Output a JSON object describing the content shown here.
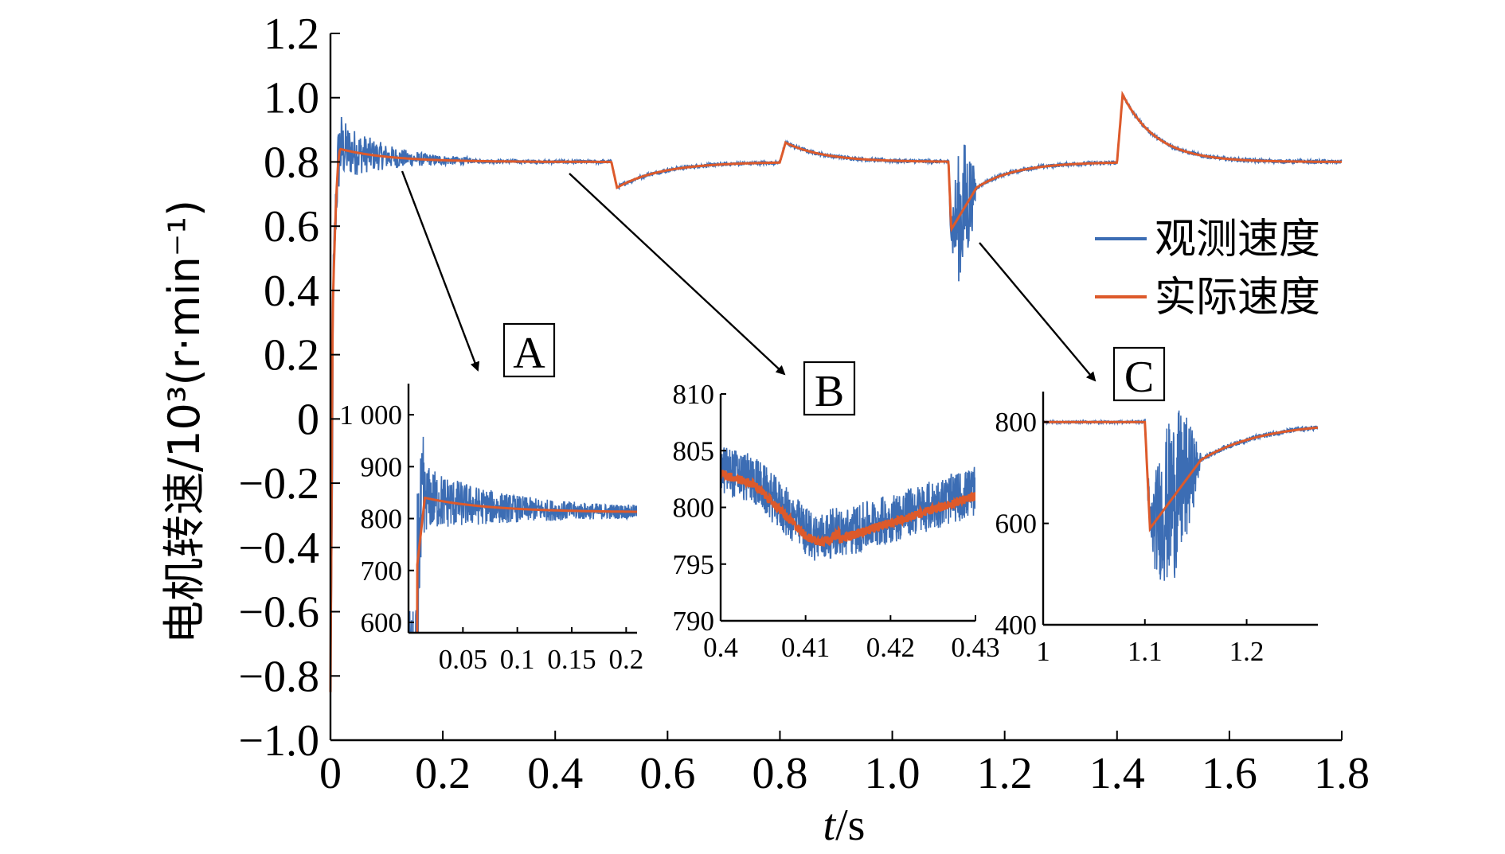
{
  "chart_data": [
    {
      "id": "main",
      "type": "line",
      "title": "",
      "xlabel_italic": "t",
      "xlabel_rest": "/s",
      "ylabel": "电机转速/10³(r·min⁻¹)",
      "xlim": [
        0,
        1.8
      ],
      "ylim": [
        -1.0,
        1.2
      ],
      "xticks": [
        0,
        0.2,
        0.4,
        0.6,
        0.8,
        1.0,
        1.2,
        1.4,
        1.6,
        1.8
      ],
      "xtick_labels": [
        "0",
        "0.2",
        "0.4",
        "0.6",
        "0.8",
        "1.0",
        "1.2",
        "1.4",
        "1.6",
        "1.8"
      ],
      "yticks": [
        -1.0,
        -0.8,
        -0.6,
        -0.4,
        -0.2,
        0,
        0.2,
        0.4,
        0.6,
        0.8,
        1.0,
        1.2
      ],
      "ytick_labels": [
        "−1.0",
        "−0.8",
        "−0.6",
        "−0.4",
        "−0.2",
        "0",
        "0.2",
        "0.4",
        "0.6",
        "0.8",
        "1.0",
        "1.2"
      ],
      "series": [
        {
          "name": "观测速度",
          "color": "#3c6db4",
          "noisy": true
        },
        {
          "name": "实际速度",
          "color": "#dd5a2b",
          "noisy": false
        }
      ],
      "key_points": [
        {
          "x": 0.0,
          "y": 0.0
        },
        {
          "x": 0.018,
          "y": 0.84
        },
        {
          "x": 0.2,
          "y": 0.8
        },
        {
          "x": 0.5,
          "y": 0.8
        },
        {
          "x": 0.51,
          "y": 0.72
        },
        {
          "x": 0.8,
          "y": 0.8
        },
        {
          "x": 0.81,
          "y": 0.86
        },
        {
          "x": 1.1,
          "y": 0.8
        },
        {
          "x": 1.105,
          "y": 0.59
        },
        {
          "x": 1.15,
          "y": 0.72
        },
        {
          "x": 1.4,
          "y": 0.8
        },
        {
          "x": 1.41,
          "y": 1.01
        },
        {
          "x": 1.6,
          "y": 0.81
        },
        {
          "x": 1.8,
          "y": 0.8
        }
      ],
      "legend": {
        "position": "right",
        "entries": [
          "观测速度",
          "实际速度"
        ]
      },
      "zoom_labels": [
        "A",
        "B",
        "C"
      ]
    },
    {
      "id": "A",
      "type": "line",
      "label": "A",
      "xlim": [
        0,
        0.21
      ],
      "ylim": [
        580,
        1060
      ],
      "xticks": [
        0.05,
        0.1,
        0.15,
        0.2
      ],
      "xtick_labels": [
        "0.05",
        "0.1",
        "0.15",
        "0.2"
      ],
      "yticks": [
        600,
        700,
        800,
        900,
        1000
      ],
      "ytick_labels": [
        "600",
        "700",
        "800",
        "900",
        "1 000"
      ]
    },
    {
      "id": "B",
      "type": "line",
      "label": "B",
      "xlim": [
        0.4,
        0.43
      ],
      "ylim": [
        790,
        810
      ],
      "xticks": [
        0.4,
        0.41,
        0.42,
        0.43
      ],
      "xtick_labels": [
        "0.4",
        "0.41",
        "0.42",
        "0.43"
      ],
      "yticks": [
        790,
        795,
        800,
        805,
        810
      ],
      "ytick_labels": [
        "790",
        "795",
        "800",
        "805",
        "810"
      ]
    },
    {
      "id": "C",
      "type": "line",
      "label": "C",
      "xlim": [
        1.0,
        1.27
      ],
      "ylim": [
        400,
        860
      ],
      "xticks": [
        1.0,
        1.1,
        1.2
      ],
      "xtick_labels": [
        "1",
        "1.1",
        "1.2"
      ],
      "yticks": [
        400,
        600,
        800
      ],
      "ytick_labels": [
        "400",
        "600",
        "800"
      ]
    }
  ]
}
